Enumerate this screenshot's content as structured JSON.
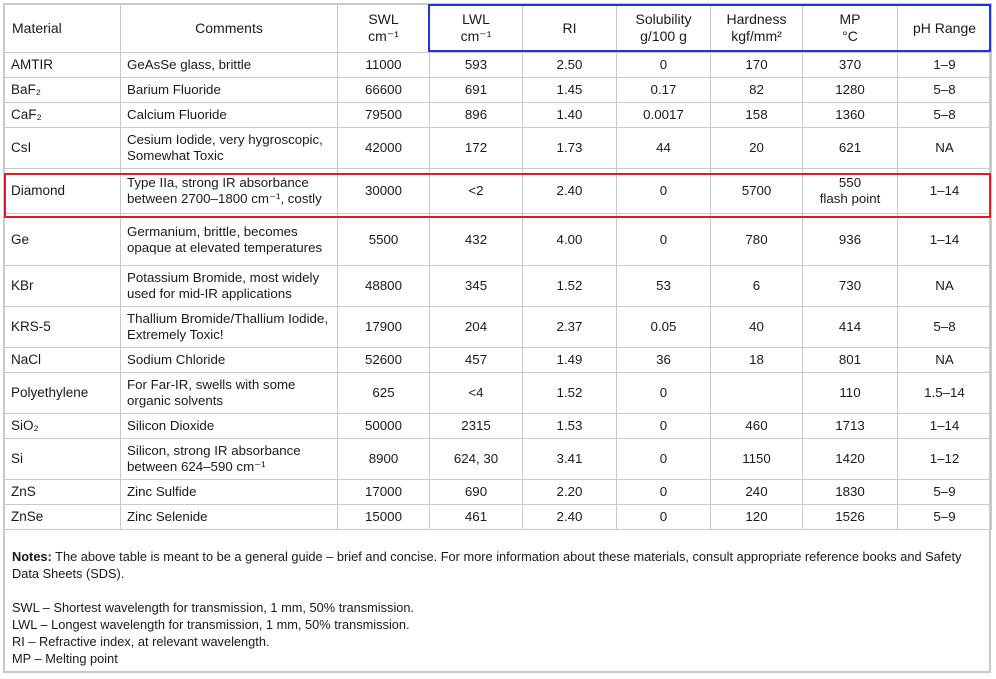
{
  "table": {
    "headers": {
      "material": "Material",
      "comments": "Comments",
      "swl": "SWL",
      "swl_unit": "cm⁻¹",
      "lwl": "LWL",
      "lwl_unit": "cm⁻¹",
      "ri": "RI",
      "solubility": "Solubility",
      "solubility_unit": "g/100 g",
      "hardness": "Hardness",
      "hardness_unit": "kgf/mm²",
      "mp": "MP",
      "mp_unit": "°C",
      "ph": "pH Range"
    },
    "rows": [
      {
        "material": "AMTIR",
        "comments": "GeAsSe glass, brittle",
        "swl": "11000",
        "lwl": "593",
        "ri": "2.50",
        "solubility": "0",
        "hardness": "170",
        "mp": "370",
        "ph": "1–9"
      },
      {
        "material": "BaF₂",
        "comments": "Barium Fluoride",
        "swl": "66600",
        "lwl": "691",
        "ri": "1.45",
        "solubility": "0.17",
        "hardness": "82",
        "mp": "1280",
        "ph": "5–8"
      },
      {
        "material": "CaF₂",
        "comments": "Calcium Fluoride",
        "swl": "79500",
        "lwl": "896",
        "ri": "1.40",
        "solubility": "0.0017",
        "hardness": "158",
        "mp": "1360",
        "ph": "5–8"
      },
      {
        "material": "CsI",
        "comments": "Cesium Iodide, very hygroscopic, Somewhat Toxic",
        "swl": "42000",
        "lwl": "172",
        "ri": "1.73",
        "solubility": "44",
        "hardness": "20",
        "mp": "621",
        "ph": "NA"
      },
      {
        "material": "Diamond",
        "comments": "Type IIa, strong IR absorbance between 2700–1800 cm⁻¹, costly",
        "swl": "30000",
        "lwl": "<2",
        "ri": "2.40",
        "solubility": "0",
        "hardness": "5700",
        "mp": "550",
        "mp_note": "flash point",
        "ph": "1–14"
      },
      {
        "material": "Ge",
        "comments": "Germanium, brittle, becomes opaque at elevated temperatures",
        "swl": "5500",
        "lwl": "432",
        "ri": "4.00",
        "solubility": "0",
        "hardness": "780",
        "mp": "936",
        "ph": "1–14"
      },
      {
        "material": "KBr",
        "comments": "Potassium Bromide, most widely used for mid-IR applications",
        "swl": "48800",
        "lwl": "345",
        "ri": "1.52",
        "solubility": "53",
        "hardness": "6",
        "mp": "730",
        "ph": "NA"
      },
      {
        "material": "KRS-5",
        "comments": "Thallium Bromide/Thallium Iodide, Extremely Toxic!",
        "swl": "17900",
        "lwl": "204",
        "ri": "2.37",
        "solubility": "0.05",
        "hardness": "40",
        "mp": "414",
        "ph": "5–8"
      },
      {
        "material": "NaCl",
        "comments": "Sodium Chloride",
        "swl": "52600",
        "lwl": "457",
        "ri": "1.49",
        "solubility": "36",
        "hardness": "18",
        "mp": "801",
        "ph": "NA"
      },
      {
        "material": "Polyethylene",
        "comments": "For Far-IR, swells with some organic solvents",
        "swl": "625",
        "lwl": "<4",
        "ri": "1.52",
        "solubility": "0",
        "hardness": "",
        "mp": "110",
        "ph": "1.5–14"
      },
      {
        "material": "SiO₂",
        "comments": "Silicon Dioxide",
        "swl": "50000",
        "lwl": "2315",
        "ri": "1.53",
        "solubility": "0",
        "hardness": "460",
        "mp": "1713",
        "ph": "1–14"
      },
      {
        "material": "Si",
        "comments": "Silicon, strong IR absorbance between 624–590 cm⁻¹",
        "swl": "8900",
        "lwl": "624, 30",
        "ri": "3.41",
        "solubility": "0",
        "hardness": "1150",
        "mp": "1420",
        "ph": "1–12"
      },
      {
        "material": "ZnS",
        "comments": "Zinc Sulfide",
        "swl": "17000",
        "lwl": "690",
        "ri": "2.20",
        "solubility": "0",
        "hardness": "240",
        "mp": "1830",
        "ph": "5–9"
      },
      {
        "material": "ZnSe",
        "comments": "Zinc Selenide",
        "swl": "15000",
        "lwl": "461",
        "ri": "2.40",
        "solubility": "0",
        "hardness": "120",
        "mp": "1526",
        "ph": "5–9"
      }
    ]
  },
  "notes": {
    "label": "Notes:",
    "text": "The above table is meant to be a general guide – brief and concise. For more information about these materials, consult appropriate reference books and Safety Data Sheets (SDS).",
    "definitions": [
      "SWL – Shortest wavelength for transmission, 1 mm, 50% transmission.",
      "LWL – Longest wavelength for transmission, 1 mm, 50% transmission.",
      "RI – Refractive index, at relevant wavelength.",
      "MP – Melting point"
    ]
  },
  "colors": {
    "highlight_blue": "#1d34d8",
    "highlight_red": "#e1192a",
    "grid": "#c9c9c9"
  }
}
